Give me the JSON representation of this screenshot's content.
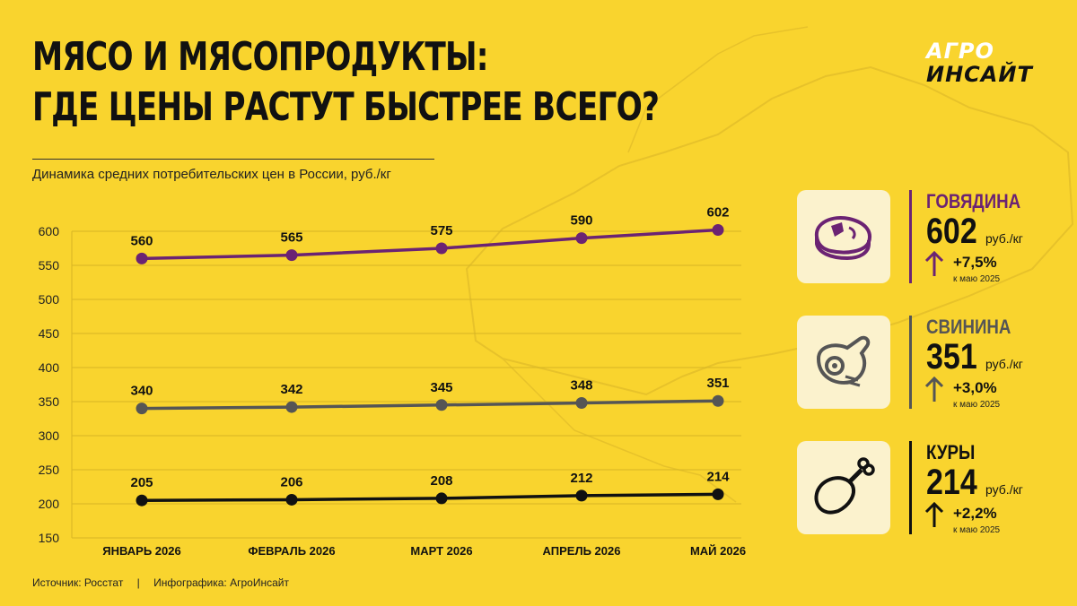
{
  "header": {
    "title_line1": "МЯСО И МЯСОПРОДУКТЫ:",
    "title_line2": "ГДЕ ЦЕНЫ РАСТУТ БЫСТРЕЕ ВСЕГО?",
    "subtitle": "Динамика средних потребительских цен в России, руб./кг"
  },
  "logo": {
    "line1": "АГРО",
    "line2": "ИНСАЙТ"
  },
  "chart_data": {
    "type": "line",
    "title": "",
    "xlabel": "",
    "ylabel": "",
    "categories": [
      "ЯНВАРЬ 2026",
      "ФЕВРАЛЬ 2026",
      "МАРТ 2026",
      "АПРЕЛЬ 2026",
      "МАЙ 2026"
    ],
    "ylim": [
      150,
      600
    ],
    "yticks": [
      150,
      200,
      250,
      300,
      350,
      400,
      450,
      500,
      550,
      600
    ],
    "grid": true,
    "legend": "none",
    "series": [
      {
        "values": [
          560,
          565,
          575,
          590,
          602
        ],
        "color": "#6b2373"
      },
      {
        "values": [
          340,
          342,
          345,
          348,
          351
        ],
        "color": "#555555"
      },
      {
        "values": [
          205,
          206,
          208,
          212,
          214
        ],
        "color": "#111111"
      }
    ]
  },
  "cards": [
    {
      "name": "ГОВЯДИНА",
      "price": "602",
      "unit": "руб./кг",
      "change": "+7,5%",
      "since": "к маю 2025",
      "accent": "#6b2373",
      "icon": "steak-icon"
    },
    {
      "name": "СВИНИНА",
      "price": "351",
      "unit": "руб./кг",
      "change": "+3,0%",
      "since": "к маю 2025",
      "accent": "#555555",
      "icon": "pork-ham-icon"
    },
    {
      "name": "КУРЫ",
      "price": "214",
      "unit": "руб./кг",
      "change": "+2,2%",
      "since": "к маю 2025",
      "accent": "#111111",
      "icon": "chicken-leg-icon"
    }
  ],
  "footer": {
    "source": "Источник: Росстат",
    "separator": "|",
    "credit": "Инфографика: АгроИнсайт"
  },
  "colors": {
    "background": "#f9d42e",
    "card_bg": "#fbf2cd",
    "grid": "#d6b524"
  }
}
